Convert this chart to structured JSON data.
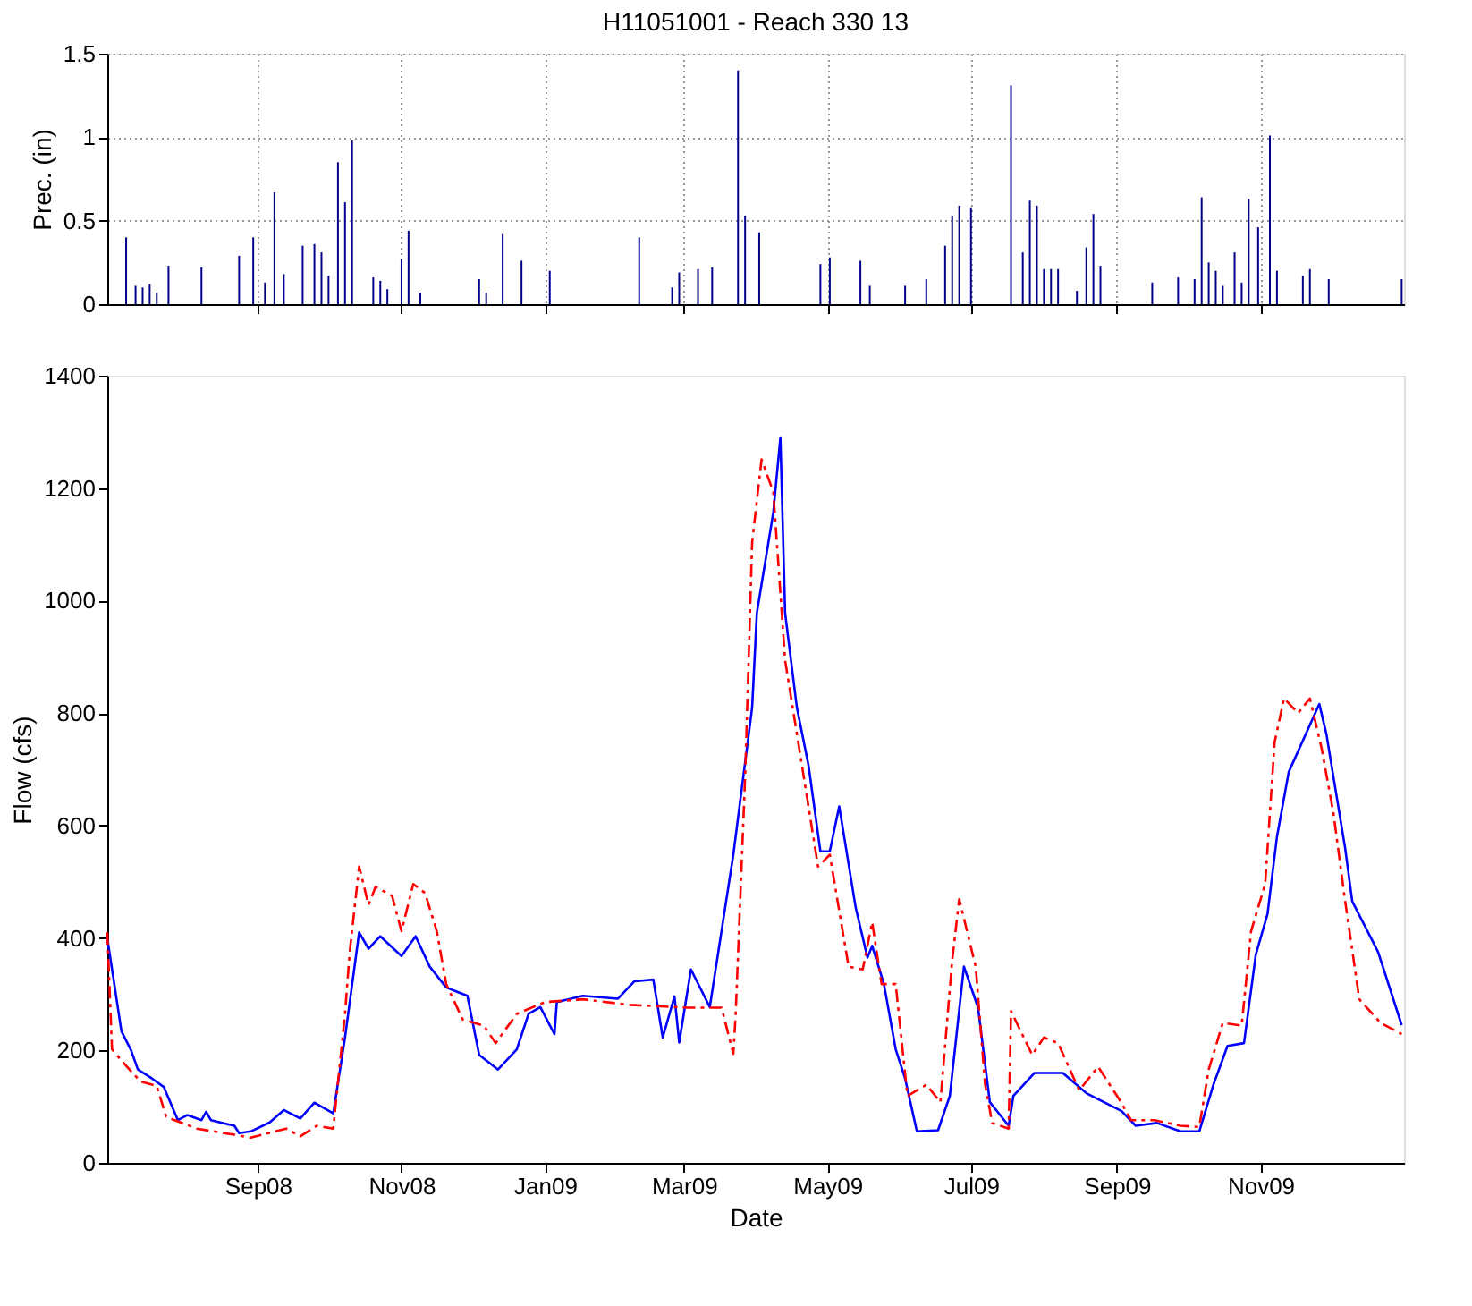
{
  "chart_data": [
    {
      "type": "bar",
      "title": "H11051001 - Reach 330 13",
      "ylabel": "Prec. (in)",
      "grid": true,
      "tick_labels": "y",
      "xlim": [
        "2008-06-29",
        "2010-01-01"
      ],
      "ylim": [
        0,
        1.5
      ],
      "yticks": [
        0,
        0.5,
        1,
        1.5
      ],
      "xticks": [
        {
          "value": "2008-09-01",
          "label": null
        },
        {
          "value": "2008-11-01",
          "label": null
        },
        {
          "value": "2009-01-01",
          "label": null
        },
        {
          "value": "2009-03-01",
          "label": null
        },
        {
          "value": "2009-05-01",
          "label": null
        },
        {
          "value": "2009-07-01",
          "label": null
        },
        {
          "value": "2009-09-01",
          "label": null
        },
        {
          "value": "2009-11-01",
          "label": null
        }
      ],
      "series": [
        {
          "color": "#00008b",
          "x": [
            "2008-07-07",
            "2008-07-11",
            "2008-07-14",
            "2008-07-17",
            "2008-07-20",
            "2008-07-25",
            "2008-08-08",
            "2008-08-24",
            "2008-08-30",
            "2008-09-04",
            "2008-09-08",
            "2008-09-12",
            "2008-09-20",
            "2008-09-25",
            "2008-09-28",
            "2008-10-01",
            "2008-10-05",
            "2008-10-08",
            "2008-10-11",
            "2008-10-20",
            "2008-10-23",
            "2008-10-26",
            "2008-11-01",
            "2008-11-04",
            "2008-11-09",
            "2008-12-04",
            "2008-12-07",
            "2008-12-14",
            "2008-12-22",
            "2009-01-03",
            "2009-02-10",
            "2009-02-24",
            "2009-02-27",
            "2009-03-07",
            "2009-03-13",
            "2009-03-24",
            "2009-03-27",
            "2009-04-02",
            "2009-04-28",
            "2009-05-02",
            "2009-05-15",
            "2009-05-19",
            "2009-06-03",
            "2009-06-12",
            "2009-06-20",
            "2009-06-23",
            "2009-06-26",
            "2009-07-01",
            "2009-07-18",
            "2009-07-23",
            "2009-07-26",
            "2009-07-29",
            "2009-08-01",
            "2009-08-04",
            "2009-08-07",
            "2009-08-15",
            "2009-08-19",
            "2009-08-22",
            "2009-08-25",
            "2009-09-16",
            "2009-09-27",
            "2009-10-04",
            "2009-10-07",
            "2009-10-10",
            "2009-10-13",
            "2009-10-16",
            "2009-10-21",
            "2009-10-24",
            "2009-10-27",
            "2009-10-31",
            "2009-11-05",
            "2009-11-08",
            "2009-11-19",
            "2009-11-22",
            "2009-11-30",
            "2009-12-31"
          ],
          "values": [
            0.4,
            0.11,
            0.1,
            0.12,
            0.07,
            0.23,
            0.22,
            0.29,
            0.4,
            0.13,
            0.67,
            0.18,
            0.35,
            0.36,
            0.31,
            0.17,
            0.85,
            0.61,
            0.98,
            0.16,
            0.14,
            0.09,
            0.27,
            0.44,
            0.07,
            0.15,
            0.07,
            0.42,
            0.26,
            0.2,
            0.4,
            0.1,
            0.19,
            0.21,
            0.22,
            1.4,
            0.53,
            0.43,
            0.24,
            0.28,
            0.26,
            0.11,
            0.11,
            0.15,
            0.35,
            0.53,
            0.59,
            0.58,
            1.31,
            0.31,
            0.62,
            0.59,
            0.21,
            0.21,
            0.21,
            0.08,
            0.34,
            0.54,
            0.23,
            0.13,
            0.16,
            0.15,
            0.64,
            0.25,
            0.2,
            0.11,
            0.31,
            0.13,
            0.63,
            0.46,
            1.01,
            0.2,
            0.17,
            0.21,
            0.15,
            0.15
          ]
        }
      ]
    },
    {
      "type": "line",
      "xlabel": "Date",
      "ylabel": "Flow (cfs)",
      "grid": false,
      "xlim": [
        "2008-06-29",
        "2010-01-01"
      ],
      "ylim": [
        0,
        1400
      ],
      "yticks": [
        0,
        200,
        400,
        600,
        800,
        1000,
        1200,
        1400
      ],
      "xticks": [
        {
          "value": "2008-09-01",
          "label": "Sep08"
        },
        {
          "value": "2008-11-01",
          "label": "Nov08"
        },
        {
          "value": "2009-01-01",
          "label": "Jan09"
        },
        {
          "value": "2009-03-01",
          "label": "Mar09"
        },
        {
          "value": "2009-05-01",
          "label": "May09"
        },
        {
          "value": "2009-07-01",
          "label": "Jul09"
        },
        {
          "value": "2009-09-01",
          "label": "Sep09"
        },
        {
          "value": "2009-11-01",
          "label": "Nov09"
        }
      ],
      "series": [
        {
          "color": "#0000ff",
          "line_style": "solid",
          "x": [
            "2008-06-29",
            "2008-07-05",
            "2008-07-09",
            "2008-07-12",
            "2008-07-18",
            "2008-07-23",
            "2008-07-29",
            "2008-08-02",
            "2008-08-08",
            "2008-08-10",
            "2008-08-12",
            "2008-08-22",
            "2008-08-24",
            "2008-08-29",
            "2008-09-06",
            "2008-09-12",
            "2008-09-19",
            "2008-09-25",
            "2008-10-03",
            "2008-10-08",
            "2008-10-14",
            "2008-10-18",
            "2008-10-23",
            "2008-11-01",
            "2008-11-07",
            "2008-11-13",
            "2008-11-20",
            "2008-11-29",
            "2008-12-04",
            "2008-12-12",
            "2008-12-20",
            "2008-12-25",
            "2008-12-30",
            "2009-01-05",
            "2009-01-06",
            "2009-01-17",
            "2009-02-01",
            "2009-02-08",
            "2009-02-16",
            "2009-02-20",
            "2009-02-25",
            "2009-02-27",
            "2009-03-04",
            "2009-03-12",
            "2009-03-22",
            "2009-03-30",
            "2009-04-01",
            "2009-04-08",
            "2009-04-11",
            "2009-04-13",
            "2009-04-18",
            "2009-04-23",
            "2009-04-28",
            "2009-05-02",
            "2009-05-06",
            "2009-05-13",
            "2009-05-18",
            "2009-05-20",
            "2009-05-25",
            "2009-05-30",
            "2009-06-03",
            "2009-06-08",
            "2009-06-17",
            "2009-06-22",
            "2009-06-28",
            "2009-07-04",
            "2009-07-09",
            "2009-07-17",
            "2009-07-19",
            "2009-07-28",
            "2009-08-09",
            "2009-08-19",
            "2009-09-03",
            "2009-09-09",
            "2009-09-18",
            "2009-09-28",
            "2009-10-06",
            "2009-10-12",
            "2009-10-18",
            "2009-10-25",
            "2009-10-30",
            "2009-11-04",
            "2009-11-08",
            "2009-11-13",
            "2009-11-26",
            "2009-11-29",
            "2009-12-07",
            "2009-12-10",
            "2009-12-21",
            "2009-12-31"
          ],
          "values": [
            400,
            234,
            201,
            166,
            150,
            135,
            76,
            85,
            76,
            91,
            76,
            66,
            53,
            56,
            72,
            94,
            79,
            107,
            88,
            223,
            410,
            381,
            403,
            368,
            403,
            349,
            312,
            297,
            192,
            166,
            202,
            265,
            277,
            229,
            286,
            297,
            292,
            323,
            326,
            223,
            296,
            214,
            344,
            277,
            548,
            810,
            978,
            1157,
            1290,
            978,
            810,
            706,
            554,
            554,
            634,
            454,
            365,
            386,
            318,
            202,
            150,
            56,
            58,
            119,
            349,
            276,
            108,
            66,
            119,
            160,
            160,
            124,
            92,
            66,
            71,
            56,
            56,
            139,
            208,
            213,
            370,
            443,
            580,
            695,
            816,
            763,
            559,
            465,
            375,
            245
          ]
        },
        {
          "color": "#ff0000",
          "line_style": "dashed",
          "x": [
            "2008-06-29",
            "2008-07-01",
            "2008-07-05",
            "2008-07-13",
            "2008-07-20",
            "2008-07-24",
            "2008-08-06",
            "2008-08-22",
            "2008-08-29",
            "2008-09-13",
            "2008-09-19",
            "2008-09-26",
            "2008-10-03",
            "2008-10-08",
            "2008-10-10",
            "2008-10-14",
            "2008-10-18",
            "2008-10-21",
            "2008-10-28",
            "2008-11-01",
            "2008-11-06",
            "2008-11-11",
            "2008-11-16",
            "2008-11-20",
            "2008-11-27",
            "2008-12-06",
            "2008-12-11",
            "2008-12-20",
            "2009-01-01",
            "2009-01-17",
            "2009-02-06",
            "2009-03-03",
            "2009-03-17",
            "2009-03-22",
            "2009-03-23",
            "2009-03-27",
            "2009-03-30",
            "2009-04-03",
            "2009-04-08",
            "2009-04-13",
            "2009-04-21",
            "2009-04-27",
            "2009-05-02",
            "2009-05-10",
            "2009-05-16",
            "2009-05-20",
            "2009-05-24",
            "2009-05-30",
            "2009-06-04",
            "2009-06-12",
            "2009-06-18",
            "2009-06-23",
            "2009-06-26",
            "2009-07-03",
            "2009-07-07",
            "2009-07-10",
            "2009-07-17",
            "2009-07-18",
            "2009-07-27",
            "2009-08-01",
            "2009-08-07",
            "2009-08-16",
            "2009-08-24",
            "2009-09-02",
            "2009-09-07",
            "2009-09-17",
            "2009-09-28",
            "2009-10-06",
            "2009-10-10",
            "2009-10-16",
            "2009-10-24",
            "2009-10-28",
            "2009-11-03",
            "2009-11-07",
            "2009-11-11",
            "2009-11-17",
            "2009-11-22",
            "2009-11-27",
            "2009-12-02",
            "2009-12-07",
            "2009-12-13",
            "2009-12-22",
            "2009-12-31"
          ],
          "values": [
            410,
            202,
            182,
            145,
            137,
            82,
            61,
            50,
            45,
            61,
            47,
            66,
            61,
            265,
            375,
            527,
            459,
            491,
            475,
            412,
            496,
            480,
            412,
            318,
            255,
            244,
            213,
            265,
            286,
            291,
            281,
            276,
            276,
            194,
            265,
            685,
            1104,
            1251,
            1193,
            894,
            685,
            527,
            548,
            349,
            344,
            428,
            318,
            318,
            119,
            139,
            108,
            360,
            469,
            349,
            139,
            71,
            61,
            270,
            192,
            223,
            213,
            129,
            171,
            113,
            76,
            76,
            66,
            64,
            166,
            249,
            244,
            412,
            496,
            748,
            826,
            800,
            826,
            737,
            622,
            465,
            291,
            249,
            229
          ]
        }
      ]
    }
  ]
}
